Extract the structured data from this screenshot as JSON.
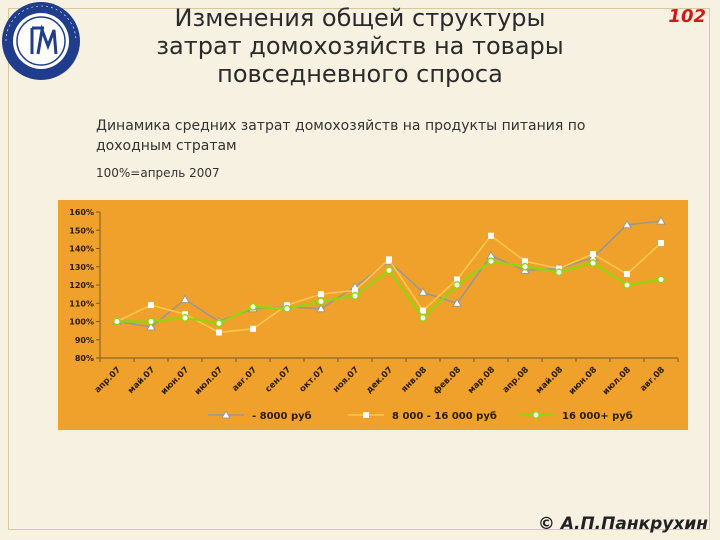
{
  "header": {
    "title_lines": [
      "Изменения общей структуры",
      "затрат домохозяйств на товары",
      "повседневного спроса"
    ],
    "page_number": "102"
  },
  "logo": {
    "top_text": "ГИЛЬДИЯ",
    "bottom_text": "МАРКЕТОЛОГОВ",
    "monogram": "ГМ"
  },
  "subtitle": "Динамика средних затрат домохозяйств на продукты питания по доходным стратам",
  "base_note": "100%=апрель 2007",
  "footer": {
    "credit": "© А.П.Панкрухин"
  },
  "colors": {
    "chart_bg": "#f0a12c",
    "series_low": "#9c9890",
    "series_mid": "#ffc84a",
    "series_high": "#8fd60d"
  },
  "chart_data": {
    "type": "line",
    "ylim": [
      0.8,
      1.6
    ],
    "y_ticks": [
      0.8,
      0.9,
      1.0,
      1.1,
      1.2,
      1.3,
      1.4,
      1.5,
      1.6
    ],
    "y_tick_labels": [
      "80%",
      "90%",
      "100%",
      "110%",
      "120%",
      "130%",
      "140%",
      "150%",
      "160%"
    ],
    "categories": [
      "апр.07",
      "май.07",
      "июн.07",
      "июл.07",
      "авг.07",
      "сен.07",
      "окт.07",
      "ноя.07",
      "дек.07",
      "янв.08",
      "фев.08",
      "мар.08",
      "апр.08",
      "май.08",
      "июн.08",
      "июл.08",
      "авг.08"
    ],
    "series": [
      {
        "name": "- 8000 руб",
        "marker": "triangle",
        "values": [
          1.0,
          0.97,
          1.12,
          1.0,
          1.07,
          1.08,
          1.07,
          1.19,
          1.33,
          1.16,
          1.1,
          1.36,
          1.28,
          1.29,
          1.35,
          1.53,
          1.55
        ]
      },
      {
        "name": "8 000 - 16 000 руб",
        "marker": "square",
        "values": [
          1.0,
          1.09,
          1.04,
          0.94,
          0.96,
          1.09,
          1.15,
          1.17,
          1.34,
          1.06,
          1.23,
          1.47,
          1.33,
          1.29,
          1.37,
          1.26,
          1.43
        ]
      },
      {
        "name": "16 000+ руб",
        "marker": "circle",
        "values": [
          1.0,
          1.0,
          1.02,
          0.99,
          1.08,
          1.07,
          1.11,
          1.14,
          1.28,
          1.02,
          1.2,
          1.33,
          1.3,
          1.27,
          1.32,
          1.2,
          1.23
        ]
      }
    ],
    "legend": "bottom"
  }
}
